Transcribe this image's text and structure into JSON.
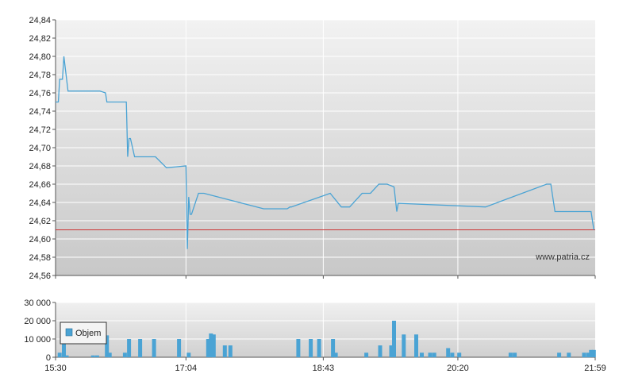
{
  "chart_data": [
    {
      "type": "line",
      "name": "price-panel",
      "ylim": [
        24.56,
        24.84
      ],
      "yticks": [
        "24,84",
        "24,82",
        "24,80",
        "24,78",
        "24,76",
        "24,74",
        "24,72",
        "24,70",
        "24,68",
        "24,66",
        "24,64",
        "24,62",
        "24,60",
        "24,58",
        "24,56"
      ],
      "xlim": [
        "15:30",
        "21:59"
      ],
      "xticks": [
        "15:30",
        "17:04",
        "18:43",
        "20:20",
        "21:59"
      ],
      "grid": true,
      "reference_line": {
        "value": 24.61,
        "color": "#cc3333"
      },
      "credit": "www.patria.cz",
      "line_color": "#4aa3d4",
      "points": [
        [
          "15:30",
          24.75
        ],
        [
          "15:32",
          24.75
        ],
        [
          "15:33",
          24.775
        ],
        [
          "15:35",
          24.775
        ],
        [
          "15:36",
          24.8
        ],
        [
          "15:39",
          24.762
        ],
        [
          "16:02",
          24.762
        ],
        [
          "16:06",
          24.76
        ],
        [
          "16:07",
          24.75
        ],
        [
          "16:21",
          24.75
        ],
        [
          "16:22",
          24.69
        ],
        [
          "16:23",
          24.71
        ],
        [
          "16:24",
          24.71
        ],
        [
          "16:27",
          24.69
        ],
        [
          "16:42",
          24.69
        ],
        [
          "16:50",
          24.678
        ],
        [
          "17:04",
          24.68
        ],
        [
          "17:05",
          24.589
        ],
        [
          "17:06",
          24.646
        ],
        [
          "17:07",
          24.627
        ],
        [
          "17:08",
          24.627
        ],
        [
          "17:13",
          24.65
        ],
        [
          "17:17",
          24.65
        ],
        [
          "18:00",
          24.633
        ],
        [
          "18:17",
          24.633
        ],
        [
          "18:19",
          24.635
        ],
        [
          "18:20",
          24.635
        ],
        [
          "18:48",
          24.65
        ],
        [
          "18:56",
          24.635
        ],
        [
          "19:02",
          24.635
        ],
        [
          "19:11",
          24.65
        ],
        [
          "19:17",
          24.65
        ],
        [
          "19:23",
          24.66
        ],
        [
          "19:29",
          24.66
        ],
        [
          "19:34",
          24.657
        ],
        [
          "19:36",
          24.63
        ],
        [
          "19:37",
          24.639
        ],
        [
          "20:40",
          24.635
        ],
        [
          "21:24",
          24.66
        ],
        [
          "21:27",
          24.66
        ],
        [
          "21:30",
          24.63
        ],
        [
          "21:56",
          24.63
        ],
        [
          "21:58",
          24.61
        ]
      ]
    },
    {
      "type": "bar",
      "name": "volume-panel",
      "ylim": [
        0,
        30000
      ],
      "yticks": [
        "30 000",
        "20 000",
        "10 000",
        "0"
      ],
      "xlim": [
        "15:30",
        "21:59"
      ],
      "xticks": [
        "15:30",
        "17:04",
        "18:43",
        "20:20",
        "21:59"
      ],
      "grid": true,
      "legend": {
        "label": "Objem",
        "placement": "top-left"
      },
      "bar_color": "#4aa3d4",
      "bars": [
        [
          "15:33",
          2500
        ],
        [
          "15:36",
          8000
        ],
        [
          "15:38",
          1000
        ],
        [
          "15:57",
          1000
        ],
        [
          "16:00",
          1000
        ],
        [
          "16:07",
          12000
        ],
        [
          "16:09",
          2500
        ],
        [
          "16:20",
          2500
        ],
        [
          "16:23",
          10000
        ],
        [
          "16:31",
          10000
        ],
        [
          "16:41",
          10000
        ],
        [
          "16:59",
          10000
        ],
        [
          "17:06",
          2500
        ],
        [
          "17:20",
          10000
        ],
        [
          "17:22",
          13000
        ],
        [
          "17:24",
          12500
        ],
        [
          "17:32",
          6500
        ],
        [
          "17:36",
          6500
        ],
        [
          "18:25",
          10000
        ],
        [
          "18:34",
          10000
        ],
        [
          "18:40",
          10000
        ],
        [
          "18:50",
          10000
        ],
        [
          "18:52",
          2500
        ],
        [
          "19:14",
          2500
        ],
        [
          "19:24",
          6500
        ],
        [
          "19:32",
          6500
        ],
        [
          "19:34",
          20000
        ],
        [
          "19:41",
          12500
        ],
        [
          "19:50",
          12500
        ],
        [
          "19:54",
          2500
        ],
        [
          "20:00",
          2500
        ],
        [
          "20:03",
          2500
        ],
        [
          "20:13",
          5000
        ],
        [
          "20:16",
          2500
        ],
        [
          "20:21",
          2500
        ],
        [
          "20:58",
          2500
        ],
        [
          "21:01",
          2500
        ],
        [
          "21:33",
          2500
        ],
        [
          "21:40",
          2500
        ],
        [
          "21:51",
          2500
        ],
        [
          "21:54",
          2500
        ],
        [
          "21:56",
          4000
        ],
        [
          "21:58",
          4000
        ]
      ]
    }
  ]
}
